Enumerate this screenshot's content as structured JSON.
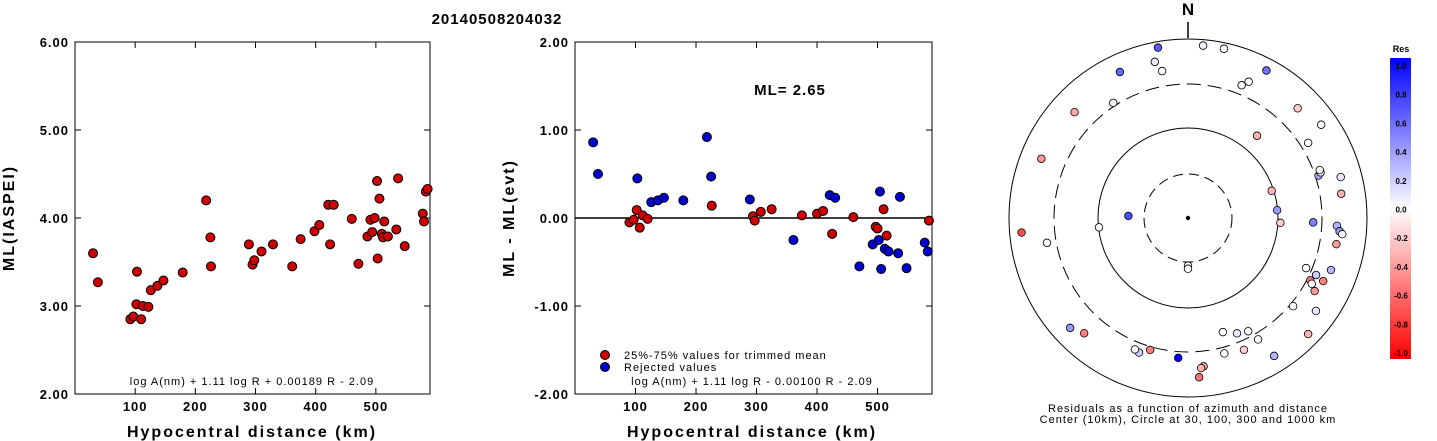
{
  "figure": {
    "title": "20140508204032"
  },
  "chart_data": [
    {
      "id": "left",
      "type": "scatter",
      "xlabel": "Hypocentral distance (km)",
      "ylabel": "ML(IASPEI)",
      "xlim": [
        0,
        590
      ],
      "ylim": [
        2.0,
        6.0
      ],
      "xticks": [
        100,
        200,
        300,
        400,
        500
      ],
      "yticks": [
        2.0,
        3.0,
        4.0,
        5.0,
        6.0
      ],
      "ytick_labels": [
        "2.00",
        "3.00",
        "4.00",
        "5.00",
        "6.00"
      ],
      "annotation": "log A(nm) + 1.11 log R + 0.00189 R - 2.09",
      "point_color": "#cc0000",
      "points": [
        [
          30,
          3.6
        ],
        [
          38,
          3.27
        ],
        [
          92,
          2.85
        ],
        [
          97,
          2.88
        ],
        [
          103,
          3.39
        ],
        [
          102,
          3.02
        ],
        [
          110,
          2.85
        ],
        [
          113,
          3.0
        ],
        [
          122,
          2.99
        ],
        [
          126,
          3.18
        ],
        [
          137,
          3.23
        ],
        [
          147,
          3.29
        ],
        [
          179,
          3.38
        ],
        [
          218,
          4.2
        ],
        [
          225,
          3.78
        ],
        [
          226,
          3.45
        ],
        [
          289,
          3.7
        ],
        [
          295,
          3.47
        ],
        [
          298,
          3.52
        ],
        [
          310,
          3.62
        ],
        [
          329,
          3.7
        ],
        [
          361,
          3.45
        ],
        [
          375,
          3.76
        ],
        [
          398,
          3.85
        ],
        [
          406,
          3.92
        ],
        [
          421,
          4.15
        ],
        [
          424,
          3.7
        ],
        [
          430,
          4.15
        ],
        [
          460,
          3.99
        ],
        [
          471,
          3.48
        ],
        [
          486,
          3.79
        ],
        [
          491,
          3.98
        ],
        [
          494,
          3.84
        ],
        [
          498,
          4.0
        ],
        [
          502,
          4.42
        ],
        [
          503,
          3.54
        ],
        [
          506,
          4.22
        ],
        [
          510,
          3.82
        ],
        [
          512,
          3.78
        ],
        [
          514,
          3.96
        ],
        [
          520,
          3.79
        ],
        [
          534,
          3.87
        ],
        [
          537,
          4.45
        ],
        [
          548,
          3.68
        ],
        [
          578,
          4.05
        ],
        [
          580,
          3.96
        ],
        [
          583,
          4.3
        ],
        [
          586,
          4.33
        ]
      ]
    },
    {
      "id": "middle",
      "type": "scatter",
      "xlabel": "Hypocentral distance (km)",
      "ylabel": "ML - ML(evt)",
      "xlim": [
        0,
        590
      ],
      "ylim": [
        -2.0,
        2.0
      ],
      "xticks": [
        100,
        200,
        300,
        400,
        500
      ],
      "yticks": [
        -2.0,
        -1.0,
        0.0,
        1.0,
        2.0
      ],
      "ytick_labels": [
        "-2.00",
        "-1.00",
        "0.00",
        "1.00",
        "2.00"
      ],
      "ml_text": "ML= 2.65",
      "annotation": "log A(nm) + 1.11 log R - 0.00100 R - 2.09",
      "legend": [
        {
          "label": "25%-75% values for trimmed mean",
          "color": "#cc0000"
        },
        {
          "label": "Rejected values",
          "color": "#0000cc"
        }
      ],
      "series": [
        {
          "name": "25%-75% values for trimmed mean",
          "color": "#cc0000",
          "points": [
            [
              90,
              -0.05
            ],
            [
              97,
              -0.02
            ],
            [
              102,
              0.09
            ],
            [
              107,
              -0.11
            ],
            [
              112,
              0.03
            ],
            [
              120,
              -0.01
            ],
            [
              226,
              0.14
            ],
            [
              294,
              0.02
            ],
            [
              297,
              -0.03
            ],
            [
              307,
              0.07
            ],
            [
              325,
              0.1
            ],
            [
              375,
              0.03
            ],
            [
              400,
              0.05
            ],
            [
              410,
              0.08
            ],
            [
              425,
              -0.18
            ],
            [
              460,
              0.01
            ],
            [
              497,
              -0.1
            ],
            [
              500,
              -0.12
            ],
            [
              510,
              0.1
            ],
            [
              515,
              -0.2
            ],
            [
              585,
              -0.03
            ]
          ]
        },
        {
          "name": "Rejected values",
          "color": "#0000cc",
          "points": [
            [
              30,
              0.86
            ],
            [
              38,
              0.5
            ],
            [
              103,
              0.45
            ],
            [
              126,
              0.18
            ],
            [
              137,
              0.2
            ],
            [
              147,
              0.23
            ],
            [
              179,
              0.2
            ],
            [
              218,
              0.92
            ],
            [
              225,
              0.47
            ],
            [
              289,
              0.21
            ],
            [
              361,
              -0.25
            ],
            [
              421,
              0.26
            ],
            [
              430,
              0.23
            ],
            [
              470,
              -0.55
            ],
            [
              492,
              -0.3
            ],
            [
              502,
              -0.25
            ],
            [
              504,
              0.3
            ],
            [
              506,
              -0.58
            ],
            [
              512,
              -0.35
            ],
            [
              518,
              -0.38
            ],
            [
              534,
              -0.4
            ],
            [
              537,
              0.24
            ],
            [
              548,
              -0.57
            ],
            [
              578,
              -0.28
            ],
            [
              583,
              -0.38
            ]
          ]
        }
      ]
    },
    {
      "id": "polar",
      "type": "scatter",
      "north_label": "N",
      "caption": [
        "Residuals as a function of azimuth and distance",
        "Center (10km), Circle at 30, 100, 300 and 1000 km"
      ],
      "colorbar": {
        "title": "Res",
        "tick_labels": [
          "1.0",
          "0.8",
          "0.6",
          "0.4",
          "0.2",
          "0.0",
          "-0.2",
          "-0.4",
          "-0.6",
          "-0.8",
          "-1.0"
        ],
        "max_color": "#0000ff",
        "mid_color": "#ffffff",
        "min_color": "#ff0000"
      },
      "stations": [
        {
          "az": 5,
          "dist": 580,
          "res": 0.05
        },
        {
          "az": 12,
          "dist": 580,
          "res": 0.0
        },
        {
          "az": 28,
          "dist": 560,
          "res": 0.55
        },
        {
          "az": 350,
          "dist": 580,
          "res": 0.65
        },
        {
          "az": 348,
          "dist": 535,
          "res": 0.1
        },
        {
          "az": 335,
          "dist": 540,
          "res": 0.6
        },
        {
          "az": 327,
          "dist": 460,
          "res": 0.05
        },
        {
          "az": 313,
          "dist": 520,
          "res": -0.35
        },
        {
          "az": 22,
          "dist": 480,
          "res": -0.05
        },
        {
          "az": 24,
          "dist": 500,
          "res": 0.0
        },
        {
          "az": 45,
          "dist": 520,
          "res": -0.2
        },
        {
          "az": 55,
          "dist": 545,
          "res": 0.0
        },
        {
          "az": 72,
          "dist": 460,
          "res": 0.35
        },
        {
          "az": 71,
          "dist": 470,
          "res": 0.0
        },
        {
          "az": 70,
          "dist": 470,
          "res": -0.05
        },
        {
          "az": 75,
          "dist": 530,
          "res": 0.1
        },
        {
          "az": 81,
          "dist": 520,
          "res": -0.3
        },
        {
          "az": 92,
          "dist": 420,
          "res": 0.5
        },
        {
          "az": 93,
          "dist": 310,
          "res": -0.2
        },
        {
          "az": 93,
          "dist": 500,
          "res": 0.3
        },
        {
          "az": 95,
          "dist": 510,
          "res": 0.4
        },
        {
          "az": 96,
          "dist": 520,
          "res": 0.0
        },
        {
          "az": 100,
          "dist": 505,
          "res": -0.4
        },
        {
          "az": 110,
          "dist": 510,
          "res": 0.3
        },
        {
          "az": 113,
          "dist": 430,
          "res": 0.0
        },
        {
          "az": 114,
          "dist": 470,
          "res": 0.2
        },
        {
          "az": 115,
          "dist": 500,
          "res": -0.5
        },
        {
          "az": 117,
          "dist": 460,
          "res": -0.55
        },
        {
          "az": 118,
          "dist": 470,
          "res": 0.0
        },
        {
          "az": 120,
          "dist": 490,
          "res": -0.4
        },
        {
          "az": 126,
          "dist": 530,
          "res": 0.1
        },
        {
          "az": 134,
          "dist": 560,
          "res": -0.3
        },
        {
          "az": 148,
          "dist": 545,
          "res": 0.3
        },
        {
          "az": 157,
          "dist": 480,
          "res": -0.2
        },
        {
          "az": 174,
          "dist": 500,
          "res": -0.35
        },
        {
          "az": 176,
          "dist": 535,
          "res": -0.55
        },
        {
          "az": 184,
          "dist": 470,
          "res": 1.0
        },
        {
          "az": 196,
          "dist": 460,
          "res": -0.5
        },
        {
          "az": 200,
          "dist": 480,
          "res": 0.2
        },
        {
          "az": 202,
          "dist": 475,
          "res": 0.0
        },
        {
          "az": 222,
          "dist": 520,
          "res": -0.5
        },
        {
          "az": 227,
          "dist": 540,
          "res": 0.4
        },
        {
          "az": 260,
          "dist": 480,
          "res": 0.0
        },
        {
          "az": 265,
          "dist": 560,
          "res": -0.7
        },
        {
          "az": 264,
          "dist": 300,
          "res": 0.0
        },
        {
          "az": 272,
          "dist": 200,
          "res": 0.7
        },
        {
          "az": 292,
          "dist": 530,
          "res": -0.4
        },
        {
          "az": 180,
          "dist": 160,
          "res": 0.0
        },
        {
          "az": 163,
          "dist": 400,
          "res": 0.0
        },
        {
          "az": 157,
          "dist": 420,
          "res": 0.1
        },
        {
          "az": 180,
          "dist": 170,
          "res": 0.0
        },
        {
          "az": 350,
          "dist": 500,
          "res": 0.0
        },
        {
          "az": 130,
          "dist": 460,
          "res": 0.0
        },
        {
          "az": 58,
          "dist": 475,
          "res": 0.0
        },
        {
          "az": 85,
          "dist": 300,
          "res": 0.4
        },
        {
          "az": 175,
          "dist": 505,
          "res": -0.3
        },
        {
          "az": 40,
          "dist": 360,
          "res": -0.3
        },
        {
          "az": 72,
          "dist": 295,
          "res": -0.3
        },
        {
          "az": 165,
          "dist": 470,
          "res": 0.0
        },
        {
          "az": 152,
          "dist": 430,
          "res": 0.0
        },
        {
          "az": 150,
          "dist": 470,
          "res": 0.0
        }
      ]
    }
  ]
}
